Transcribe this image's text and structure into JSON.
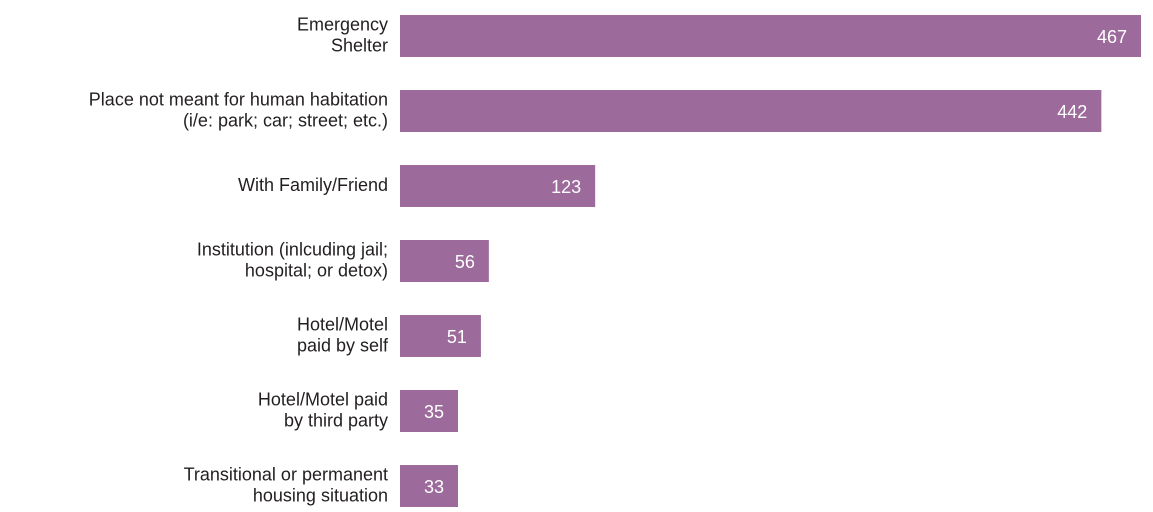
{
  "chart_data": {
    "type": "bar",
    "orientation": "horizontal",
    "color": "#9c6a9b",
    "categories": [
      [
        "Emergency",
        "Shelter"
      ],
      [
        "Place not meant for human habitation",
        "(i/e: park; car; street; etc.)"
      ],
      [
        "With Family/Friend"
      ],
      [
        "Institution (inlcuding jail;",
        "hospital; or detox)"
      ],
      [
        "Hotel/Motel",
        "paid by self"
      ],
      [
        "Hotel/Motel paid",
        "by third party"
      ],
      [
        "Transitional or permanent",
        "housing situation"
      ]
    ],
    "values": [
      467,
      442,
      123,
      56,
      51,
      35,
      33
    ]
  }
}
